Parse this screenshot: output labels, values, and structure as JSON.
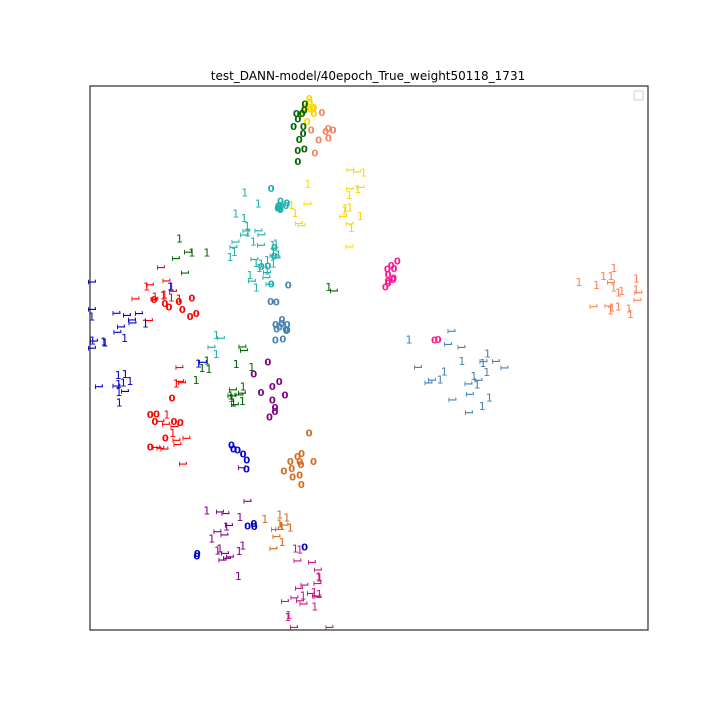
{
  "chart_data": {
    "type": "scatter",
    "title": "test_DANN-model/40epoch_True_weight50118_1731",
    "xlabel": "",
    "ylabel": "",
    "xticks": [],
    "yticks": [],
    "xlim": [
      0,
      100
    ],
    "ylim": [
      0,
      100
    ],
    "grid": false,
    "legend": {
      "placement": "top-right",
      "entries": []
    },
    "marker_text": {
      "source": "0",
      "target": "1"
    },
    "clusters": [
      {
        "color": "#FFD700",
        "glyph": "0",
        "x": 39.7,
        "y": 95.4,
        "n": 10,
        "sx": 1.0,
        "sy": 1.5
      },
      {
        "color": "#006400",
        "glyph": "0",
        "x": 37.5,
        "y": 93.0,
        "n": 12,
        "sx": 0.8,
        "sy": 2.7
      },
      {
        "color": "#F4845F",
        "glyph": "0",
        "x": 42.1,
        "y": 90.5,
        "n": 8,
        "sx": 1.5,
        "sy": 2.2
      },
      {
        "color": "#FFD700",
        "glyph": "1",
        "x": 46.8,
        "y": 78.9,
        "n": 15,
        "sx": 1.5,
        "sy": 3.5
      },
      {
        "color": "#FFD700",
        "glyph": "1",
        "x": 37.4,
        "y": 78.9,
        "n": 6,
        "sx": 1.1,
        "sy": 2.0
      },
      {
        "color": "#20B2AA",
        "glyph": "0",
        "x": 33.9,
        "y": 78.2,
        "n": 9,
        "sx": 1.6,
        "sy": 1.5
      },
      {
        "color": "#20B2AA",
        "glyph": "1",
        "x": 27.9,
        "y": 73.1,
        "n": 20,
        "sx": 2.3,
        "sy": 4.3
      },
      {
        "color": "#20B2AA",
        "glyph": "0",
        "x": 31.4,
        "y": 67.4,
        "n": 5,
        "sx": 1.2,
        "sy": 1.9
      },
      {
        "color": "#20B2AA",
        "glyph": "1",
        "x": 31.2,
        "y": 65.6,
        "n": 15,
        "sx": 1.5,
        "sy": 2.2
      },
      {
        "color": "#006400",
        "glyph": "1",
        "x": 17.2,
        "y": 70.0,
        "n": 6,
        "sx": 3.0,
        "sy": 2.5
      },
      {
        "color": "#006400",
        "glyph": "1",
        "x": 43.5,
        "y": 63.5,
        "n": 2,
        "sx": 0.5,
        "sy": 0.5
      },
      {
        "color": "#FF1493",
        "glyph": "0",
        "x": 52.8,
        "y": 65.4,
        "n": 10,
        "sx": 1.5,
        "sy": 1.5
      },
      {
        "color": "#FF7F50",
        "glyph": "1",
        "x": 94.0,
        "y": 61.5,
        "n": 20,
        "sx": 3.5,
        "sy": 2.3
      },
      {
        "color": "#FF0000",
        "glyph": "1",
        "x": 13.5,
        "y": 63.0,
        "n": 14,
        "sx": 2.5,
        "sy": 2.5
      },
      {
        "color": "#FF0000",
        "glyph": "0",
        "x": 16.7,
        "y": 59.5,
        "n": 8,
        "sx": 2.5,
        "sy": 1.5
      },
      {
        "color": "#0000CD",
        "glyph": "1",
        "x": 3.0,
        "y": 55.0,
        "n": 20,
        "sx": 3.0,
        "sy": 4.0
      },
      {
        "color": "#0000CD",
        "glyph": "1",
        "x": 5.5,
        "y": 45.0,
        "n": 8,
        "sx": 0.9,
        "sy": 1.4
      },
      {
        "color": "#4682B4",
        "glyph": "0",
        "x": 34.3,
        "y": 55.5,
        "n": 14,
        "sx": 1.2,
        "sy": 2.8
      },
      {
        "color": "#20B2AA",
        "glyph": "1",
        "x": 22.2,
        "y": 54.0,
        "n": 4,
        "sx": 0.7,
        "sy": 1.6
      },
      {
        "color": "#0000CD",
        "glyph": "1",
        "x": 19.7,
        "y": 49.5,
        "n": 2,
        "sx": 0.5,
        "sy": 0.6
      },
      {
        "color": "#006400",
        "glyph": "1",
        "x": 20.5,
        "y": 48.8,
        "n": 4,
        "sx": 0.7,
        "sy": 1.0
      },
      {
        "color": "#006400",
        "glyph": "1",
        "x": 26.4,
        "y": 44.3,
        "n": 12,
        "sx": 0.8,
        "sy": 2.7
      },
      {
        "color": "#006400",
        "glyph": "1",
        "x": 26.8,
        "y": 50.9,
        "n": 2,
        "sx": 0.5,
        "sy": 0.5
      },
      {
        "color": "#FF1493",
        "glyph": "0",
        "x": 61.8,
        "y": 52.8,
        "n": 2,
        "sx": 0.4,
        "sy": 0.4
      },
      {
        "color": "#4682B4",
        "glyph": "1",
        "x": 67.7,
        "y": 47.7,
        "n": 25,
        "sx": 4.0,
        "sy": 3.5
      },
      {
        "color": "#800080",
        "glyph": "0",
        "x": 33.0,
        "y": 43.5,
        "n": 10,
        "sx": 1.1,
        "sy": 2.7
      },
      {
        "color": "#FF0000",
        "glyph": "1",
        "x": 15.7,
        "y": 45.0,
        "n": 4,
        "sx": 0.8,
        "sy": 1.4
      },
      {
        "color": "#FF0000",
        "glyph": "0",
        "x": 13.9,
        "y": 37.2,
        "n": 8,
        "sx": 1.7,
        "sy": 2.2
      },
      {
        "color": "#FF0000",
        "glyph": "1",
        "x": 14.0,
        "y": 35.5,
        "n": 12,
        "sx": 1.8,
        "sy": 2.5
      },
      {
        "color": "#0000CD",
        "glyph": "0",
        "x": 26.5,
        "y": 31.5,
        "n": 6,
        "sx": 0.9,
        "sy": 1.3
      },
      {
        "color": "#D2691E",
        "glyph": "0",
        "x": 37.0,
        "y": 30.6,
        "n": 12,
        "sx": 1.6,
        "sy": 3.0
      },
      {
        "color": "#D2691E",
        "glyph": "1",
        "x": 34.5,
        "y": 20.5,
        "n": 12,
        "sx": 1.5,
        "sy": 2.7
      },
      {
        "color": "#800080",
        "glyph": "1",
        "x": 24.5,
        "y": 17.0,
        "n": 20,
        "sx": 2.3,
        "sy": 4.3
      },
      {
        "color": "#0000CD",
        "glyph": "0",
        "x": 28.5,
        "y": 19.0,
        "n": 3,
        "sx": 0.8,
        "sy": 0.3
      },
      {
        "color": "#0000CD",
        "glyph": "0",
        "x": 19.2,
        "y": 13.5,
        "n": 2,
        "sx": 0.4,
        "sy": 0.3
      },
      {
        "color": "#0000CD",
        "glyph": "0",
        "x": 38.5,
        "y": 15.2,
        "n": 1,
        "sx": 0.2,
        "sy": 0.2
      },
      {
        "color": "#C71585",
        "glyph": "1",
        "x": 38.0,
        "y": 7.5,
        "n": 25,
        "sx": 2.7,
        "sy": 3.5
      }
    ]
  }
}
